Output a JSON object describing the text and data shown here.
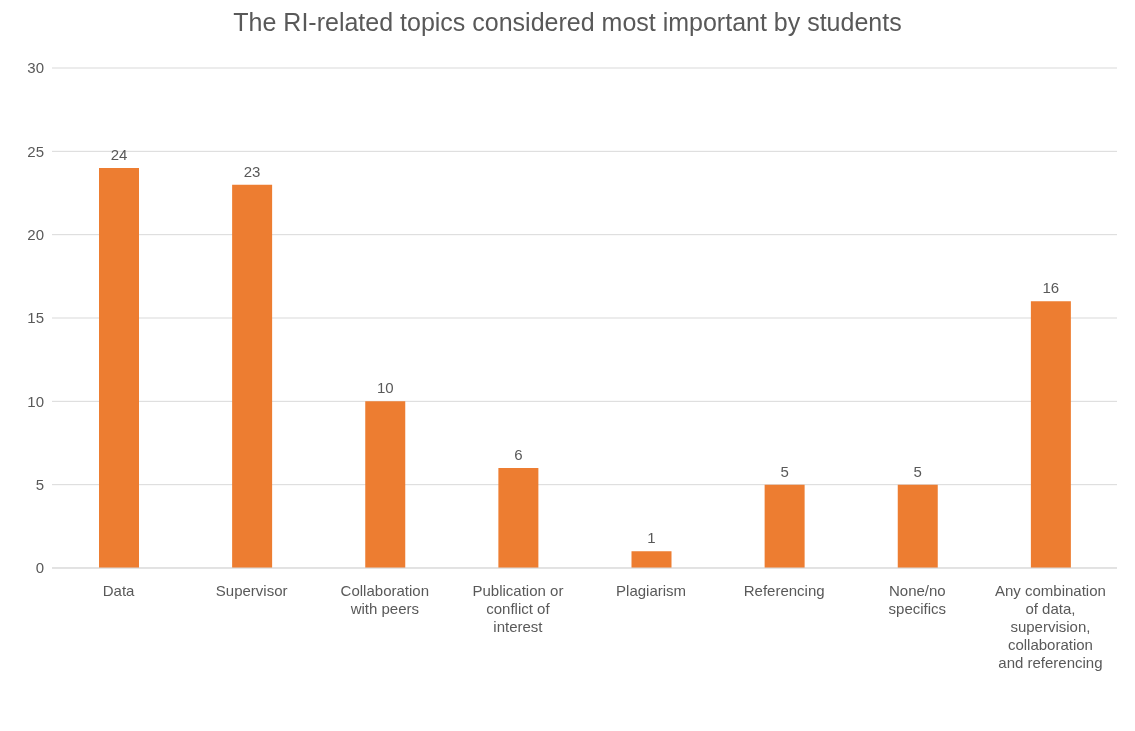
{
  "chart_data": {
    "type": "bar",
    "title": "The RI-related topics considered most important by students",
    "categories": [
      "Data",
      "Supervisor",
      "Collaboration with peers",
      "Publication or conflict of interest",
      "Plagiarism",
      "Referencing",
      "None/no specifics",
      "Any combination of data, supervision, collaboration and referencing"
    ],
    "values": [
      24,
      23,
      10,
      6,
      1,
      5,
      5,
      16
    ],
    "color": "#ed7d31",
    "ylim": [
      0,
      30
    ],
    "yticks": [
      0,
      5,
      10,
      15,
      20,
      25,
      30
    ],
    "grid": "y",
    "data_labels": true
  }
}
